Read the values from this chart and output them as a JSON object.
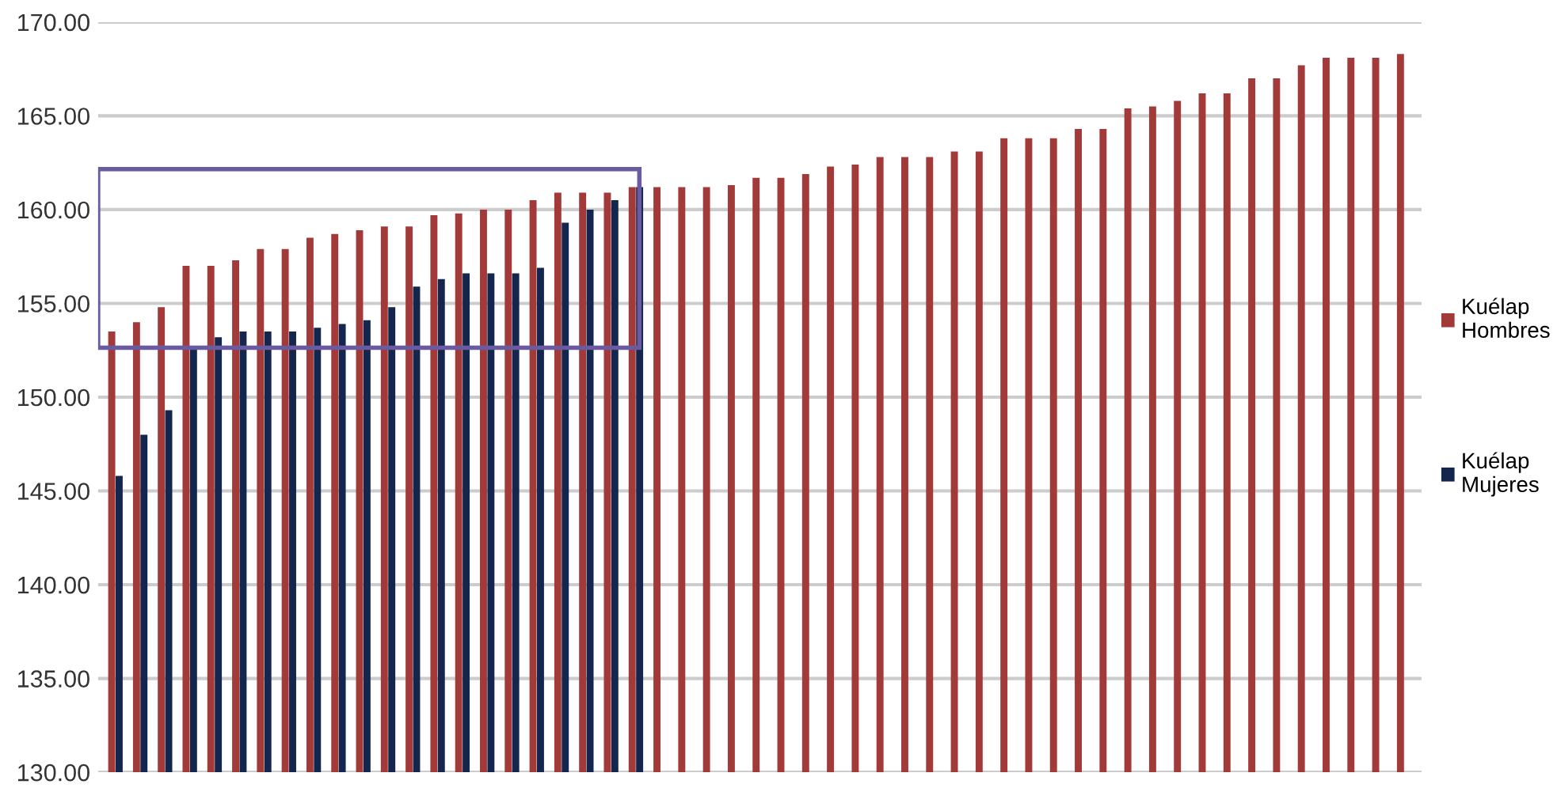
{
  "chart_data": {
    "type": "bar",
    "categories": [
      null,
      null,
      null,
      null,
      null,
      null,
      null,
      null,
      null,
      null,
      null,
      null,
      null,
      null,
      null,
      null,
      null,
      null,
      null,
      null,
      null,
      null,
      null,
      null,
      null,
      null,
      null,
      null,
      null,
      null,
      null,
      null,
      null,
      null,
      null,
      null,
      null,
      null,
      null,
      null,
      null,
      null,
      null,
      null,
      null,
      null,
      null,
      null,
      null,
      null,
      null,
      null,
      null
    ],
    "series": [
      {
        "name": "Kuélap\nHombres",
        "color": "#a33a3a",
        "values": [
          153.5,
          154.0,
          154.8,
          157.0,
          157.0,
          157.3,
          157.9,
          157.9,
          158.5,
          158.7,
          158.9,
          159.1,
          159.1,
          159.7,
          159.8,
          160.0,
          160.0,
          160.5,
          160.9,
          160.9,
          160.9,
          161.2,
          161.2,
          161.2,
          161.2,
          161.3,
          161.7,
          161.7,
          161.9,
          162.3,
          162.4,
          162.8,
          162.8,
          162.8,
          163.1,
          163.1,
          163.8,
          163.8,
          163.8,
          164.3,
          164.3,
          165.4,
          165.5,
          165.8,
          166.2,
          166.2,
          167.0,
          167.0,
          167.7,
          168.1,
          168.1,
          168.1,
          168.3
        ]
      },
      {
        "name": "Kuélap\nMujeres",
        "color": "#14264d",
        "values": [
          145.8,
          148.0,
          149.3,
          152.7,
          153.2,
          153.5,
          153.5,
          153.5,
          153.7,
          153.9,
          154.1,
          154.8,
          155.9,
          156.3,
          156.6,
          156.6,
          156.6,
          156.9,
          159.3,
          160.0,
          160.5,
          161.2,
          null,
          null,
          null,
          null,
          null,
          null,
          null,
          null,
          null,
          null,
          null,
          null,
          null,
          null,
          null,
          null,
          null,
          null,
          null,
          null,
          null,
          null,
          null,
          null,
          null,
          null,
          null,
          null,
          null,
          null,
          null
        ]
      }
    ],
    "ylim": [
      130,
      170
    ],
    "yticks": [
      {
        "value": 130,
        "label": "130.00"
      },
      {
        "value": 135,
        "label": "135.00"
      },
      {
        "value": 140,
        "label": "140.00"
      },
      {
        "value": 145,
        "label": "145.00"
      },
      {
        "value": 150,
        "label": "150.00"
      },
      {
        "value": 155,
        "label": "155.00"
      },
      {
        "value": 160,
        "label": "160.00"
      },
      {
        "value": 165,
        "label": "165.00"
      },
      {
        "value": 170,
        "label": "170.00"
      }
    ],
    "grid": "y",
    "legend": "right",
    "tick_labels": "y"
  }
}
